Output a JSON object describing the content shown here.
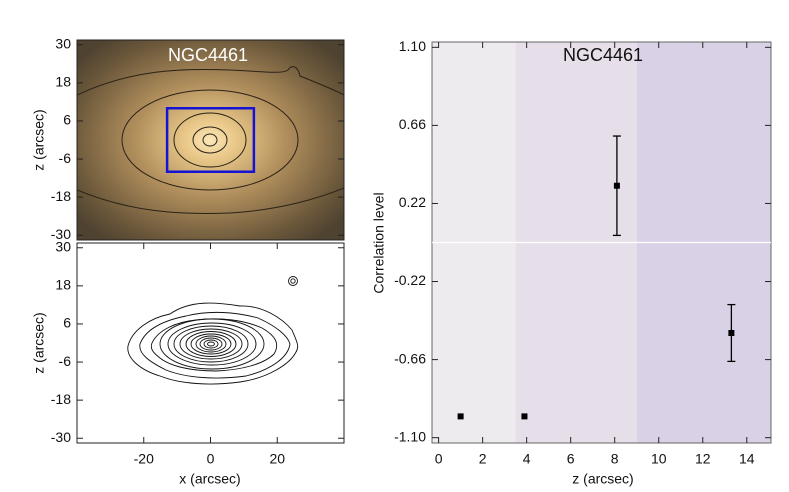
{
  "chart_data": [
    {
      "type": "image",
      "title": "NGC4461",
      "ylabel": "z (arcsec)",
      "xlim": [
        -40,
        40
      ],
      "ylim": [
        -31.5,
        31.5
      ],
      "yticks": [
        30,
        18,
        6,
        -6,
        -18,
        -30
      ],
      "box": {
        "x": [
          -13,
          13
        ],
        "y": [
          -10,
          10
        ],
        "color": "#1414d2"
      }
    },
    {
      "type": "contour",
      "xlabel": "x (arcsec)",
      "ylabel": "z (arcsec)",
      "xlim": [
        -40,
        40
      ],
      "ylim": [
        -31.5,
        31.5
      ],
      "xticks": [
        -20,
        0,
        20
      ],
      "yticks": [
        30,
        18,
        6,
        -6,
        -18,
        -30
      ]
    },
    {
      "type": "scatter",
      "title": "NGC4461",
      "xlabel": "z (arcsec)",
      "ylabel": "Correlation level",
      "xlim": [
        -0.3,
        15.1
      ],
      "ylim": [
        -1.13,
        1.13
      ],
      "xticks": [
        0,
        2,
        4,
        6,
        8,
        10,
        12,
        14
      ],
      "yticks": [
        {
          "value": 1.1,
          "label": "1.10"
        },
        0.66,
        0.22,
        -0.22,
        -0.66,
        {
          "value": -1.1,
          "label": "-1.10"
        }
      ],
      "bands": [
        {
          "from": -0.3,
          "to": 3.5,
          "color": "#eeebee"
        },
        {
          "from": 3.5,
          "to": 9.0,
          "color": "#e6dfe9"
        },
        {
          "from": 9.0,
          "to": 15.1,
          "color": "#d9d2e6"
        }
      ],
      "zero_line": true,
      "x": [
        1.0,
        3.9,
        8.1,
        13.3
      ],
      "values": [
        -0.98,
        -0.98,
        0.32,
        -0.51
      ],
      "errors": [
        null,
        null,
        0.28,
        0.16
      ],
      "color": "#000000"
    }
  ]
}
